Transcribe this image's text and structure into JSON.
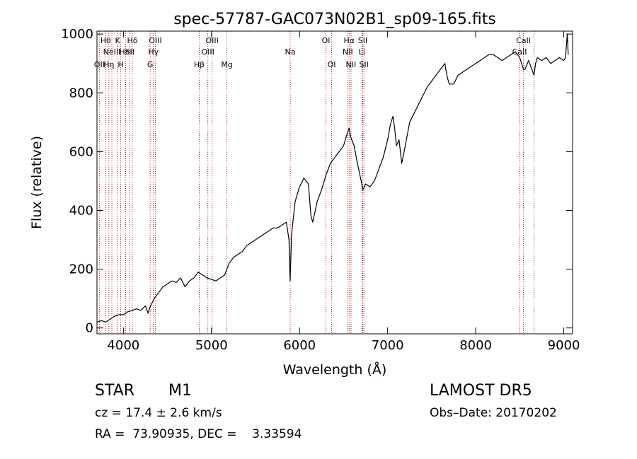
{
  "chart_data": {
    "type": "line",
    "title": "spec-57787-GAC073N02B1_sp09-165.fits",
    "xlabel": "Wavelength (Å)",
    "ylabel": "Flux (relative)",
    "xlim": [
      3700,
      9100
    ],
    "ylim": [
      -20,
      1010
    ],
    "xticks": [
      4000,
      5000,
      6000,
      7000,
      8000,
      9000
    ],
    "yticks": [
      0,
      200,
      400,
      600,
      800,
      1000
    ],
    "series": [
      {
        "x": [
          3700,
          3750,
          3800,
          3850,
          3900,
          3950,
          4000,
          4050,
          4100,
          4150,
          4200,
          4250,
          4280,
          4300,
          4350,
          4400,
          4450,
          4500,
          4550,
          4600,
          4650,
          4700,
          4750,
          4800,
          4850,
          4900,
          4950,
          5000,
          5050,
          5100,
          5150,
          5200,
          5250,
          5300,
          5350,
          5400,
          5450,
          5500,
          5550,
          5600,
          5650,
          5700,
          5750,
          5800,
          5850,
          5880,
          5893,
          5910,
          5950,
          6000,
          6050,
          6100,
          6130,
          6150,
          6200,
          6250,
          6300,
          6350,
          6400,
          6450,
          6500,
          6520,
          6540,
          6563,
          6580,
          6620,
          6650,
          6700,
          6720,
          6750,
          6800,
          6850,
          6900,
          6950,
          7000,
          7030,
          7060,
          7080,
          7100,
          7130,
          7160,
          7200,
          7250,
          7300,
          7350,
          7400,
          7450,
          7500,
          7550,
          7600,
          7650,
          7660,
          7680,
          7700,
          7750,
          7800,
          7850,
          7900,
          7950,
          8000,
          8050,
          8100,
          8150,
          8200,
          8250,
          8300,
          8350,
          8400,
          8450,
          8500,
          8542,
          8560,
          8600,
          8662,
          8680,
          8700,
          8750,
          8800,
          8850,
          8900,
          8950,
          9000,
          9020,
          9040,
          9050
        ],
        "y": [
          20,
          25,
          20,
          30,
          40,
          45,
          45,
          55,
          60,
          65,
          60,
          75,
          50,
          70,
          100,
          120,
          140,
          150,
          160,
          155,
          170,
          140,
          160,
          170,
          190,
          180,
          170,
          165,
          160,
          170,
          180,
          220,
          240,
          250,
          260,
          280,
          290,
          300,
          310,
          320,
          330,
          340,
          340,
          350,
          360,
          300,
          160,
          320,
          430,
          480,
          510,
          490,
          380,
          360,
          430,
          470,
          520,
          560,
          580,
          600,
          620,
          640,
          660,
          680,
          650,
          620,
          570,
          500,
          470,
          490,
          480,
          500,
          540,
          580,
          640,
          690,
          720,
          680,
          620,
          640,
          560,
          620,
          700,
          730,
          760,
          790,
          820,
          840,
          860,
          880,
          900,
          880,
          850,
          830,
          830,
          860,
          870,
          880,
          890,
          900,
          910,
          920,
          930,
          930,
          920,
          910,
          920,
          930,
          940,
          920,
          880,
          880,
          910,
          860,
          900,
          920,
          910,
          920,
          900,
          910,
          920,
          910,
          920,
          1000,
          930
        ]
      }
    ],
    "lines": [
      {
        "x": 3727,
        "label": "OII",
        "row": 2
      },
      {
        "x": 3798,
        "label": "Hθ",
        "row": 0
      },
      {
        "x": 3835,
        "label": "Hη",
        "row": 2
      },
      {
        "x": 3869,
        "label": "NeIII",
        "row": 1
      },
      {
        "x": 3934,
        "label": "K",
        "row": 0
      },
      {
        "x": 3969,
        "label": "H",
        "row": 2
      },
      {
        "x": 4026,
        "label": "HeI",
        "row": 1
      },
      {
        "x": 4072,
        "label": "SII",
        "row": 1
      },
      {
        "x": 4102,
        "label": "Hδ",
        "row": 0
      },
      {
        "x": 4304,
        "label": "G",
        "row": 2
      },
      {
        "x": 4341,
        "label": "Hγ",
        "row": 1
      },
      {
        "x": 4363,
        "label": "OIII",
        "row": 0
      },
      {
        "x": 4861,
        "label": "Hβ",
        "row": 2
      },
      {
        "x": 4959,
        "label": "OIII",
        "row": 1
      },
      {
        "x": 5007,
        "label": "OIII",
        "row": 0
      },
      {
        "x": 5175,
        "label": "Mg",
        "row": 2
      },
      {
        "x": 5894,
        "label": "Na",
        "row": 1
      },
      {
        "x": 6300,
        "label": "OI",
        "row": 0
      },
      {
        "x": 6364,
        "label": "OI",
        "row": 2
      },
      {
        "x": 6548,
        "label": "NII",
        "row": 1
      },
      {
        "x": 6563,
        "label": "Hα",
        "row": 0
      },
      {
        "x": 6584,
        "label": "NII",
        "row": 2
      },
      {
        "x": 6708,
        "label": "Li",
        "row": 1
      },
      {
        "x": 6717,
        "label": "SII",
        "row": 0
      },
      {
        "x": 6731,
        "label": "SII",
        "row": 2
      },
      {
        "x": 8498,
        "label": "CaII",
        "row": 1
      },
      {
        "x": 8542,
        "label": "CaII",
        "row": 0
      },
      {
        "x": 8662,
        "label": "",
        "row": 0
      }
    ]
  },
  "info": {
    "class": "STAR",
    "subclass": "M1",
    "survey": "LAMOST DR5",
    "cz": "cz = 17.4 ± 2.6 km/s",
    "obs_date": "Obs–Date: 20170202",
    "radec": "RA =  73.90935, DEC =    3.33594"
  },
  "colors": {
    "line_marker": "#b22222",
    "spectrum": "#000000"
  }
}
